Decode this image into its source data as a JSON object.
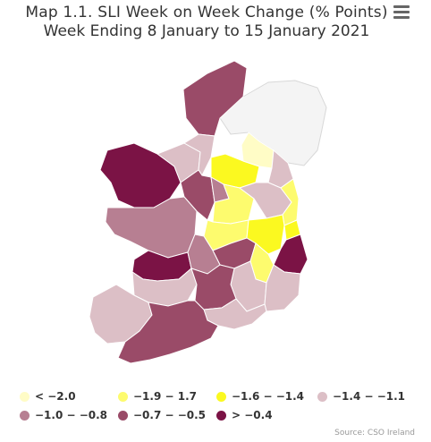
{
  "title": {
    "line1": "Map 1.1. SLI Week on Week Change (% Points)",
    "line2": "Week Ending 8 January to 15 January 2021"
  },
  "menu_icon": "hamburger-menu-icon",
  "legend": [
    {
      "label": "< −2.0",
      "color": "#fffcc6"
    },
    {
      "label": "−1.9 − 1.7",
      "color": "#fdfb6e"
    },
    {
      "label": "−1.6 − −1.4",
      "color": "#fbf920"
    },
    {
      "label": "−1.4 − −1.1",
      "color": "#dcbfc6"
    },
    {
      "label": "−1.0 − −0.8",
      "color": "#b77f92"
    },
    {
      "label": "−0.7 − −0.5",
      "color": "#9a4b68"
    },
    {
      "label": "> −0.4",
      "color": "#7b1345"
    }
  ],
  "source": "Source: CSO Ireland",
  "colors": {
    "northern_ireland": "#f4f4f4",
    "border": "#ffffff"
  }
}
